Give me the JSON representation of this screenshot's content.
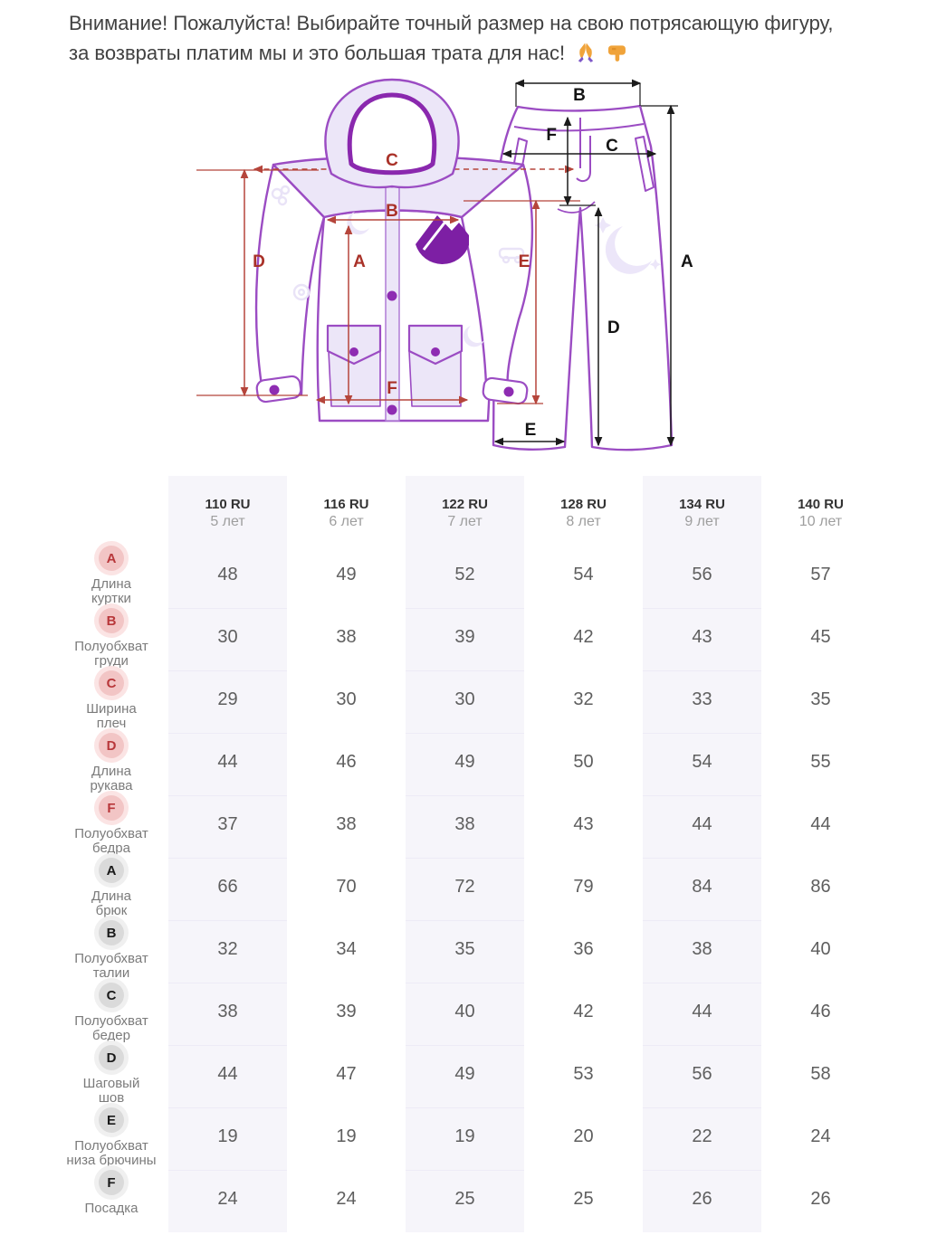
{
  "notice": {
    "line": "Внимание! Пожалуйста! Выбирайте точный размер на свою потрясающую фигуру, за возвраты платим мы и это большая трата для нас!",
    "emojis": [
      "🙏",
      "👇"
    ]
  },
  "diagram": {
    "jacket_letters": [
      "A",
      "B",
      "C",
      "D",
      "E",
      "F"
    ],
    "pants_letters": [
      "A",
      "B",
      "C",
      "D",
      "E",
      "F"
    ]
  },
  "colors": {
    "outline_purple": "#9b4cc3",
    "fill_lavender": "#ece6f8",
    "jacket_arrow_red": "#b5453b",
    "pants_arrow_black": "#1b1b1b",
    "accent_purple": "#8e2cb2",
    "shaded_column": "#f6f5fa"
  },
  "table": {
    "columns": [
      {
        "size": "110 RU",
        "age": "5 лет"
      },
      {
        "size": "116 RU",
        "age": "6 лет"
      },
      {
        "size": "122 RU",
        "age": "7 лет"
      },
      {
        "size": "128 RU",
        "age": "8 лет"
      },
      {
        "size": "134 RU",
        "age": "9 лет"
      },
      {
        "size": "140 RU",
        "age": "10 лет"
      }
    ],
    "shaded_columns": [
      0,
      2,
      4
    ],
    "rows": [
      {
        "letter": "A",
        "group": "jacket",
        "label": "Длина\nкуртки",
        "values": [
          48,
          49,
          52,
          54,
          56,
          57
        ]
      },
      {
        "letter": "B",
        "group": "jacket",
        "label": "Полуобхват\nгруди",
        "values": [
          30,
          38,
          39,
          42,
          43,
          45
        ]
      },
      {
        "letter": "C",
        "group": "jacket",
        "label": "Ширина\nплеч",
        "values": [
          29,
          30,
          30,
          32,
          33,
          35
        ]
      },
      {
        "letter": "D",
        "group": "jacket",
        "label": "Длина\nрукава",
        "values": [
          44,
          46,
          49,
          50,
          54,
          55
        ]
      },
      {
        "letter": "F",
        "group": "jacket",
        "label": "Полуобхват\nбедра",
        "values": [
          37,
          38,
          38,
          43,
          44,
          44
        ]
      },
      {
        "letter": "A",
        "group": "pants",
        "label": "Длина\nбрюк",
        "values": [
          66,
          70,
          72,
          79,
          84,
          86
        ]
      },
      {
        "letter": "B",
        "group": "pants",
        "label": "Полуобхват\nталии",
        "values": [
          32,
          34,
          35,
          36,
          38,
          40
        ]
      },
      {
        "letter": "C",
        "group": "pants",
        "label": "Полуобхват\nбедер",
        "values": [
          38,
          39,
          40,
          42,
          44,
          46
        ]
      },
      {
        "letter": "D",
        "group": "pants",
        "label": "Шаговый\nшов",
        "values": [
          44,
          47,
          49,
          53,
          56,
          58
        ]
      },
      {
        "letter": "E",
        "group": "pants",
        "label": "Полуобхват\nниза брючины",
        "values": [
          19,
          19,
          19,
          20,
          22,
          24
        ]
      },
      {
        "letter": "F",
        "group": "pants",
        "label": "Посадка",
        "values": [
          24,
          24,
          25,
          25,
          26,
          26
        ]
      }
    ]
  }
}
